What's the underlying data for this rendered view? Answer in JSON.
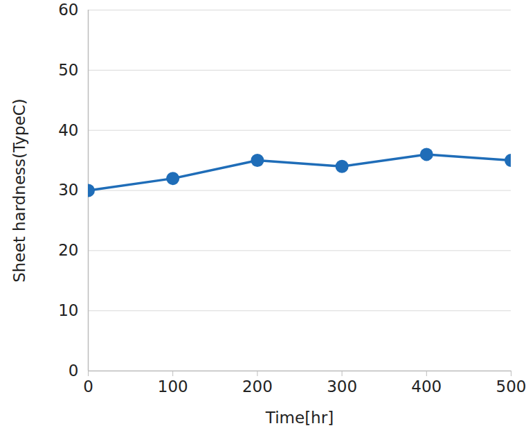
{
  "chart_data": {
    "type": "line",
    "x_label": "Time[hr]",
    "y_label": "Sheet hardness(TypeC)",
    "x": [
      0,
      100,
      200,
      300,
      400,
      500
    ],
    "values": [
      30,
      32,
      35,
      34,
      36,
      35
    ],
    "color": "#1f6db8",
    "marker": "circle",
    "line_style": "solid",
    "xlim": [
      0,
      500
    ],
    "xticks": [
      0,
      100,
      200,
      300,
      400,
      500
    ],
    "ylim": [
      0,
      60
    ],
    "yticks": [
      0,
      10,
      20,
      30,
      40,
      50,
      60
    ],
    "grid": true
  }
}
